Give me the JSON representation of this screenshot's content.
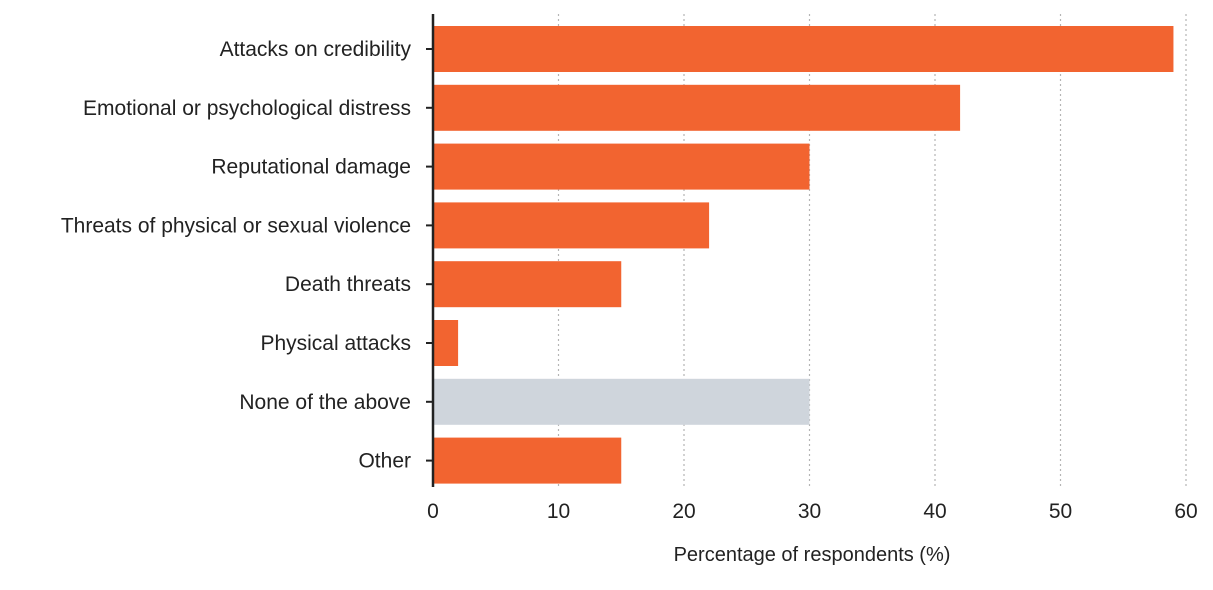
{
  "chart_data": {
    "type": "bar",
    "orientation": "horizontal",
    "title": "",
    "xlabel": "Percentage of respondents (%)",
    "ylabel": "",
    "xlim": [
      0,
      60
    ],
    "x_ticks": [
      "0",
      "10",
      "20",
      "30",
      "40",
      "50",
      "60"
    ],
    "grid": "vertical dotted gridlines",
    "categories": [
      "Attacks on credibility",
      "Emotional or psychological distress",
      "Reputational damage",
      "Threats of physical or sexual violence",
      "Death threats",
      "Physical attacks",
      "None of the above",
      "Other"
    ],
    "values": [
      59,
      42,
      30,
      22,
      15,
      2,
      30,
      15
    ],
    "bar_colors": [
      "#f26430",
      "#f26430",
      "#f26430",
      "#f26430",
      "#f26430",
      "#f26430",
      "#cfd5dc",
      "#f26430"
    ]
  }
}
